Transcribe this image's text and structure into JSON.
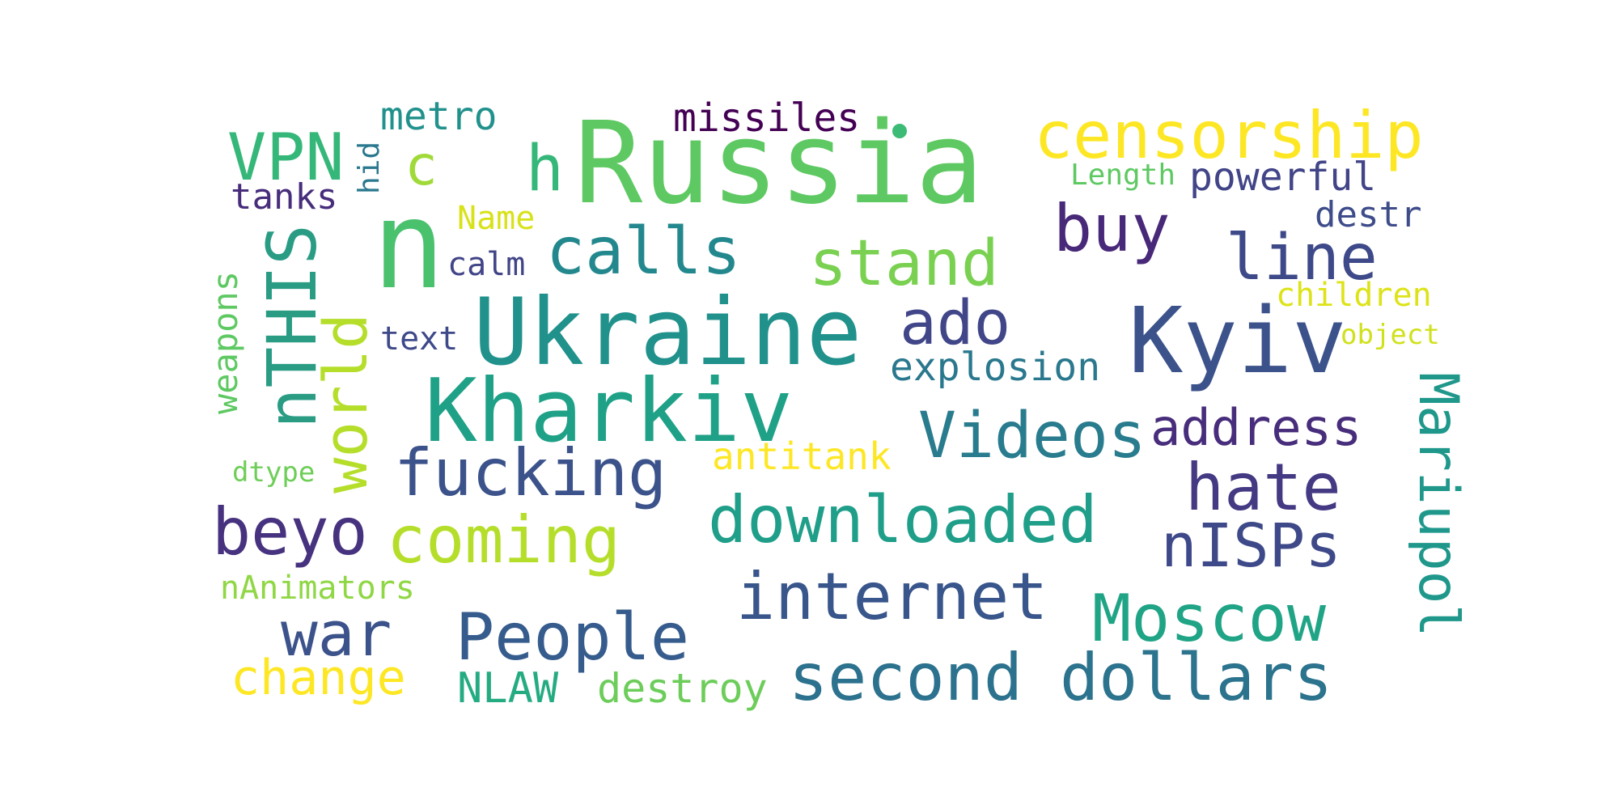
{
  "words": [
    {
      "text": "Russia",
      "color": "#5ec962"
    },
    {
      "text": "n",
      "color": "#4ac16d"
    },
    {
      "text": "Ukraine",
      "color": "#21918c"
    },
    {
      "text": "Kharkiv",
      "color": "#1fa187"
    },
    {
      "text": "Kyiv",
      "color": "#3b528b"
    },
    {
      "text": "censorship",
      "color": "#fde725"
    },
    {
      "text": "VPN",
      "color": "#35b779"
    },
    {
      "text": "nTHIS",
      "color": "#2a9c84"
    },
    {
      "text": "calls",
      "color": "#23888e"
    },
    {
      "text": "buy",
      "color": "#482878"
    },
    {
      "text": "line",
      "color": "#3e4989"
    },
    {
      "text": "stand",
      "color": "#7ad151"
    },
    {
      "text": "world",
      "color": "#b5de2b"
    },
    {
      "text": "ado",
      "color": "#404688"
    },
    {
      "text": "Videos",
      "color": "#287c8e"
    },
    {
      "text": "address",
      "color": "#472d7b"
    },
    {
      "text": "Mariupol",
      "color": "#1f988b"
    },
    {
      "text": "fucking",
      "color": "#3b528b"
    },
    {
      "text": "hate",
      "color": "#443983"
    },
    {
      "text": "downloaded",
      "color": "#1f9e89"
    },
    {
      "text": "beyo",
      "color": "#46327e"
    },
    {
      "text": "coming",
      "color": "#b5de2b"
    },
    {
      "text": "nISPs",
      "color": "#3e4989"
    },
    {
      "text": "internet",
      "color": "#39568c"
    },
    {
      "text": "Moscow",
      "color": "#20a486"
    },
    {
      "text": "war",
      "color": "#3b528b"
    },
    {
      "text": "People",
      "color": "#365c8d"
    },
    {
      "text": "second",
      "color": "#2c728e"
    },
    {
      "text": "dollars",
      "color": "#2c738e"
    },
    {
      "text": "change",
      "color": "#fde725"
    },
    {
      "text": "NLAW",
      "color": "#25ab82"
    },
    {
      "text": "destroy",
      "color": "#6ccd5a"
    },
    {
      "text": "metro",
      "color": "#21918c"
    },
    {
      "text": "missiles",
      "color": "#440154"
    },
    {
      "text": "c",
      "color": "#a0da39"
    },
    {
      "text": "h",
      "color": "#35b779"
    },
    {
      "text": "hid",
      "color": "#2a788e"
    },
    {
      "text": "tanks",
      "color": "#472d7b"
    },
    {
      "text": "powerful",
      "color": "#414487"
    },
    {
      "text": "Length",
      "color": "#5ec962"
    },
    {
      "text": "Name",
      "color": "#d8e219"
    },
    {
      "text": "destr",
      "color": "#3e4c8a"
    },
    {
      "text": "calm",
      "color": "#414487"
    },
    {
      "text": "children",
      "color": "#dde318"
    },
    {
      "text": "object",
      "color": "#d0e11c"
    },
    {
      "text": "explosion",
      "color": "#2a788e"
    },
    {
      "text": "text",
      "color": "#3e4989"
    },
    {
      "text": "weapons",
      "color": "#5ec962"
    },
    {
      "text": "antitank",
      "color": "#fde725"
    },
    {
      "text": "dtype",
      "color": "#6ece58"
    },
    {
      "text": "nAnimators",
      "color": "#8fd744"
    },
    {
      "text": "",
      "color": "#3bbb75"
    }
  ]
}
